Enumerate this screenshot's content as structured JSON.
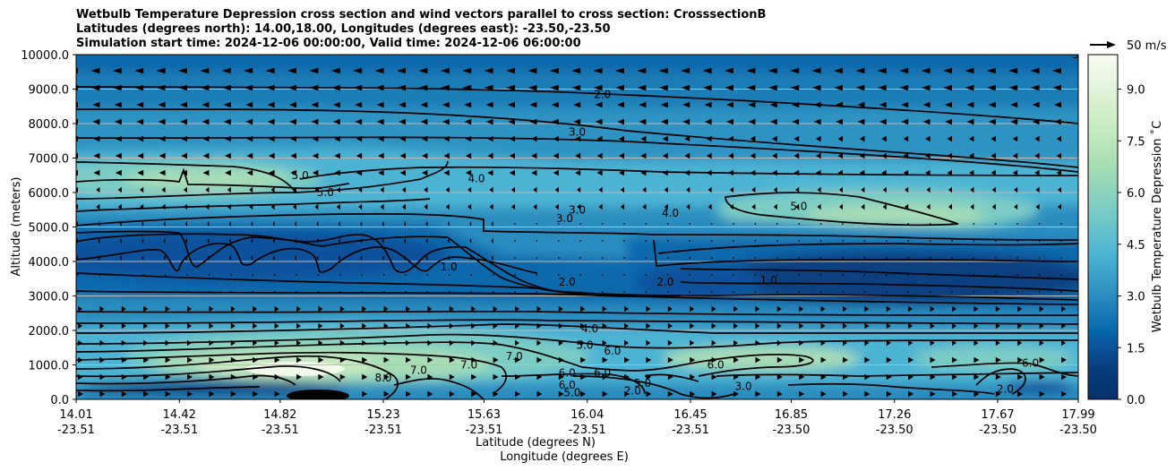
{
  "title_lines": [
    "Wetbulb Temperature Depression cross section and wind vectors parallel to cross section: CrosssectionB",
    "Latitudes (degrees north): 14.00,18.00, Longitudes (degrees east): -23.50,-23.50",
    "Simulation start time: 2024-12-06 00:00:00, Valid time: 2024-12-06 06:00:00"
  ],
  "chart_data": {
    "type": "heatmap",
    "ylabel": "Altitude (meters)",
    "xlabel_lines": [
      "Latitude (degrees N)",
      "Longitude (degrees E)"
    ],
    "ylim": [
      0,
      10000
    ],
    "yticks": [
      "0.0",
      "1000.0",
      "2000.0",
      "3000.0",
      "4000.0",
      "5000.0",
      "6000.0",
      "7000.0",
      "8000.0",
      "9000.0",
      "10000.0"
    ],
    "xticks_lat": [
      "14.01",
      "14.42",
      "14.82",
      "15.23",
      "15.63",
      "16.04",
      "16.45",
      "16.85",
      "17.26",
      "17.67",
      "17.99"
    ],
    "xticks_lon": [
      "-23.51",
      "-23.51",
      "-23.51",
      "-23.51",
      "-23.51",
      "-23.51",
      "-23.51",
      "-23.50",
      "-23.50",
      "-23.50",
      "-23.50"
    ],
    "xlim": [
      14.01,
      17.99
    ],
    "grid": "horizontal",
    "colorbar": {
      "label": "Wetbulb Temperature Depression ˚C",
      "ticks": [
        "0.0",
        "1.5",
        "3.0",
        "4.5",
        "6.0",
        "7.5",
        "9.0"
      ],
      "range": [
        0,
        10
      ],
      "colormap": "GnBu_r",
      "colors": [
        "#084081",
        "#0868ac",
        "#2b8cbe",
        "#4eb3d3",
        "#7bccc4",
        "#a8ddb5",
        "#ccebc5",
        "#e0f3db",
        "#f7fcf0"
      ]
    },
    "quiver_key": "50 m/s",
    "contour_labels": [
      {
        "text": "2.0",
        "lat": 16.1,
        "alt": 8850
      },
      {
        "text": "3.0",
        "lat": 16.0,
        "alt": 7750
      },
      {
        "text": "4.0",
        "lat": 15.6,
        "alt": 6400
      },
      {
        "text": "5.0",
        "lat": 14.9,
        "alt": 6500
      },
      {
        "text": "5.0",
        "lat": 15.0,
        "alt": 6000
      },
      {
        "text": "3.0",
        "lat": 16.0,
        "alt": 5500
      },
      {
        "text": "3.0",
        "lat": 15.95,
        "alt": 5250
      },
      {
        "text": "4.0",
        "lat": 16.37,
        "alt": 5400
      },
      {
        "text": "5.0",
        "lat": 16.88,
        "alt": 5600
      },
      {
        "text": "1.0",
        "lat": 15.49,
        "alt": 3850
      },
      {
        "text": "2.0",
        "lat": 15.96,
        "alt": 3400
      },
      {
        "text": "2.0",
        "lat": 16.35,
        "alt": 3400
      },
      {
        "text": "1.0",
        "lat": 16.76,
        "alt": 3450
      },
      {
        "text": "4.0",
        "lat": 16.05,
        "alt": 2050
      },
      {
        "text": "5.0",
        "lat": 16.03,
        "alt": 1570
      },
      {
        "text": "6.0",
        "lat": 16.14,
        "alt": 1400
      },
      {
        "text": "7.0",
        "lat": 15.57,
        "alt": 1000
      },
      {
        "text": "7.0",
        "lat": 15.37,
        "alt": 850
      },
      {
        "text": "7.0",
        "lat": 15.75,
        "alt": 1250
      },
      {
        "text": "8.0",
        "lat": 15.23,
        "alt": 620
      },
      {
        "text": "6.0",
        "lat": 15.96,
        "alt": 770
      },
      {
        "text": "6.0",
        "lat": 16.1,
        "alt": 770
      },
      {
        "text": "6.0",
        "lat": 15.96,
        "alt": 420
      },
      {
        "text": "5.0",
        "lat": 15.98,
        "alt": 200
      },
      {
        "text": "5.0",
        "lat": 16.26,
        "alt": 470
      },
      {
        "text": "2.0",
        "lat": 16.22,
        "alt": 250
      },
      {
        "text": "6.0",
        "lat": 16.55,
        "alt": 1000
      },
      {
        "text": "3.0",
        "lat": 16.66,
        "alt": 380
      },
      {
        "text": "6.0",
        "lat": 17.8,
        "alt": 1050
      },
      {
        "text": "2.0",
        "lat": 17.7,
        "alt": 300
      },
      {
        "text": "3.0",
        "lat": 18.0,
        "alt": 10000
      }
    ]
  }
}
